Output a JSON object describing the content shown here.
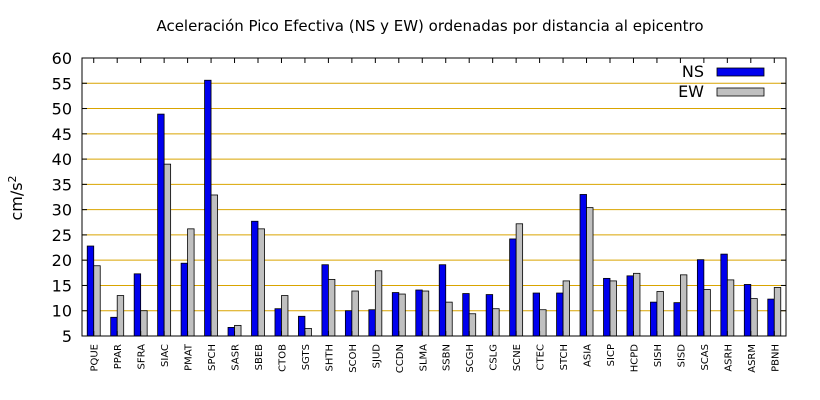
{
  "chart_data": {
    "type": "bar",
    "title": "Aceleración Pico Efectiva (NS y EW) ordenadas por distancia al epicentro",
    "ylabel_base": "cm/s",
    "ylabel_exp": "2",
    "xlabel": "",
    "ylim": [
      5,
      60
    ],
    "yticks": [
      5,
      10,
      15,
      20,
      25,
      30,
      35,
      40,
      45,
      50,
      55,
      60
    ],
    "grid": true,
    "legend_position": "top-right",
    "categories": [
      "PQUE",
      "PPAR",
      "SFRA",
      "SIAC",
      "PMAT",
      "SPCH",
      "SASR",
      "SBEB",
      "CTOB",
      "SGTS",
      "SHTH",
      "SCOH",
      "SJUD",
      "CCDN",
      "SLMA",
      "SSBN",
      "SCGH",
      "CSLG",
      "SCNE",
      "CTEC",
      "STCH",
      "ASIA",
      "SICP",
      "HCPD",
      "SISH",
      "SISD",
      "SCAS",
      "ASRH",
      "ASRM",
      "PBNH"
    ],
    "series": [
      {
        "name": "NS",
        "color": "#0000ee",
        "values": [
          22.8,
          8.7,
          17.3,
          48.9,
          19.4,
          55.6,
          6.7,
          27.7,
          10.4,
          8.9,
          19.1,
          10.0,
          10.2,
          13.6,
          14.1,
          19.1,
          13.4,
          13.2,
          24.2,
          13.5,
          13.5,
          33.0,
          16.4,
          16.9,
          11.7,
          11.6,
          20.1,
          21.2,
          15.2,
          12.3
        ]
      },
      {
        "name": "EW",
        "color": "#c0c0c0",
        "values": [
          18.9,
          13.0,
          10.0,
          39.0,
          26.2,
          32.9,
          7.1,
          26.2,
          13.0,
          6.5,
          16.2,
          13.9,
          17.9,
          13.3,
          13.9,
          11.7,
          9.4,
          10.4,
          27.2,
          10.2,
          15.9,
          30.4,
          15.9,
          17.4,
          13.8,
          17.1,
          14.2,
          16.1,
          12.4,
          14.6
        ]
      }
    ]
  }
}
